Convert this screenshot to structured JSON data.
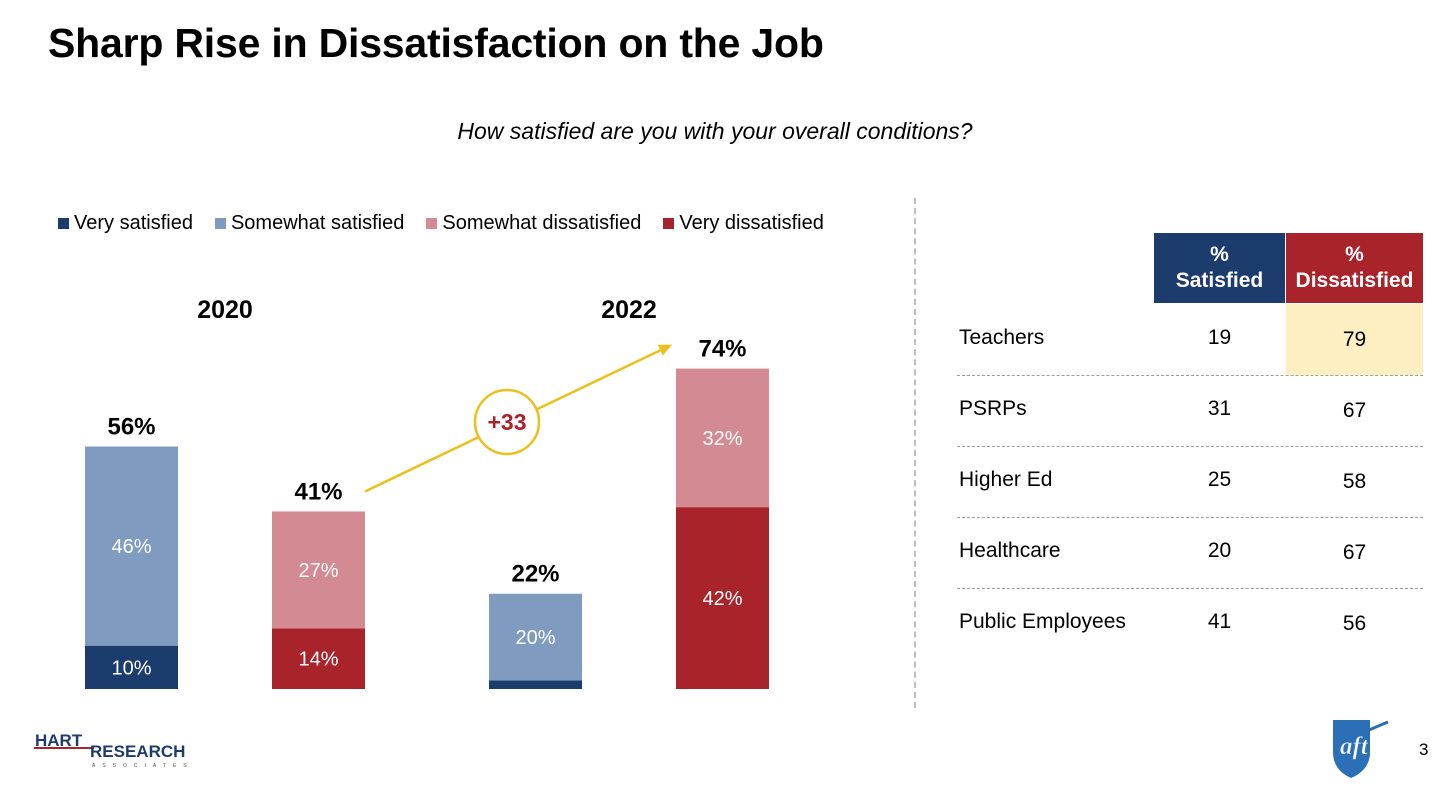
{
  "title": "Sharp Rise in Dissatisfaction on the Job",
  "question": "How satisfied are you with your overall conditions?",
  "colors": {
    "very_satisfied": "#1d3c6e",
    "somewhat_satisfied": "#7f9bc0",
    "somewhat_dissatisfied": "#d48a92",
    "very_dissatisfied": "#a8232a",
    "arrow": "#ecc01c",
    "highlight": "#fdefc2"
  },
  "legend": [
    {
      "label": "Very satisfied",
      "color_key": "very_satisfied"
    },
    {
      "label": "Somewhat satisfied",
      "color_key": "somewhat_satisfied"
    },
    {
      "label": "Somewhat dissatisfied",
      "color_key": "somewhat_dissatisfied"
    },
    {
      "label": "Very dissatisfied",
      "color_key": "very_dissatisfied"
    }
  ],
  "chart_data": {
    "type": "bar",
    "stacked": true,
    "groups": [
      "2020",
      "2022"
    ],
    "bars": [
      {
        "group": "2020",
        "kind": "satisfied",
        "total_label": "56%",
        "total": 56,
        "segments": [
          {
            "series": "Very satisfied",
            "value": 10,
            "label": "10%",
            "color_key": "very_satisfied"
          },
          {
            "series": "Somewhat satisfied",
            "value": 46,
            "label": "46%",
            "color_key": "somewhat_satisfied"
          }
        ]
      },
      {
        "group": "2020",
        "kind": "dissatisfied",
        "total_label": "41%",
        "total": 41,
        "segments": [
          {
            "series": "Very dissatisfied",
            "value": 14,
            "label": "14%",
            "color_key": "very_dissatisfied"
          },
          {
            "series": "Somewhat dissatisfied",
            "value": 27,
            "label": "27%",
            "color_key": "somewhat_dissatisfied"
          }
        ]
      },
      {
        "group": "2022",
        "kind": "satisfied",
        "total_label": "22%",
        "total": 22,
        "segments": [
          {
            "series": "Very satisfied",
            "value": 2,
            "label": "",
            "color_key": "very_satisfied"
          },
          {
            "series": "Somewhat satisfied",
            "value": 20,
            "label": "20%",
            "color_key": "somewhat_satisfied"
          }
        ]
      },
      {
        "group": "2022",
        "kind": "dissatisfied",
        "total_label": "74%",
        "total": 74,
        "segments": [
          {
            "series": "Very dissatisfied",
            "value": 42,
            "label": "42%",
            "color_key": "very_dissatisfied"
          },
          {
            "series": "Somewhat dissatisfied",
            "value": 32,
            "label": "32%",
            "color_key": "somewhat_dissatisfied"
          }
        ]
      }
    ],
    "annotation": {
      "label": "+33",
      "from_bar": 1,
      "to_bar": 3
    },
    "ylim": [
      0,
      80
    ]
  },
  "table": {
    "headers": {
      "satisfied": "% Satisfied",
      "dissatisfied": "% Dissatisfied"
    },
    "header_lines": {
      "satisfied": [
        "%",
        "Satisfied"
      ],
      "dissatisfied": [
        "%",
        "Dissatisfied"
      ]
    },
    "rows": [
      {
        "group": "Teachers",
        "satisfied": "19",
        "dissatisfied": "79",
        "highlight": true
      },
      {
        "group": "PSRPs",
        "satisfied": "31",
        "dissatisfied": "67",
        "highlight": false
      },
      {
        "group": "Higher Ed",
        "satisfied": "25",
        "dissatisfied": "58",
        "highlight": false
      },
      {
        "group": "Healthcare",
        "satisfied": "20",
        "dissatisfied": "67",
        "highlight": false
      },
      {
        "group": "Public Employees",
        "satisfied": "41",
        "dissatisfied": "56",
        "highlight": false
      }
    ]
  },
  "footer": {
    "logo_left": {
      "line1": "HART",
      "line2": "RESEARCH",
      "tagline": "ASSOCIATES"
    },
    "logo_right": "aft",
    "page_number": "3"
  }
}
